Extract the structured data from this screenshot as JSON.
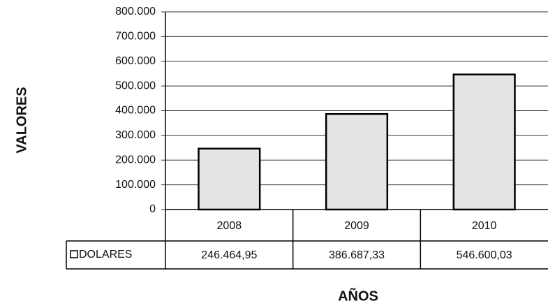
{
  "chart_data": {
    "type": "bar",
    "ylabel": "VALORES",
    "xlabel": "AÑOS",
    "categories": [
      "2008",
      "2009",
      "2010"
    ],
    "series": [
      {
        "name": "DOLARES",
        "color": "#e4e4e4",
        "values": [
          246464.95,
          386687.33,
          546600.03
        ],
        "value_labels": [
          "246.464,95",
          "386.687,33",
          "546.600,03"
        ]
      }
    ],
    "ylim": [
      0,
      800000
    ],
    "yticks": [
      0,
      {
        "value": 100000,
        "label": "100.000"
      },
      {
        "value": 200000,
        "label": "200.000"
      },
      {
        "value": 300000,
        "label": "300.000"
      },
      {
        "value": 400000,
        "label": "400.000"
      },
      {
        "value": 500000,
        "label": "500.000"
      },
      {
        "value": 600000,
        "label": "600.000"
      },
      {
        "value": 700000,
        "label": "700.000"
      },
      {
        "value": 800000,
        "label": "800.000"
      }
    ],
    "grid": true
  }
}
